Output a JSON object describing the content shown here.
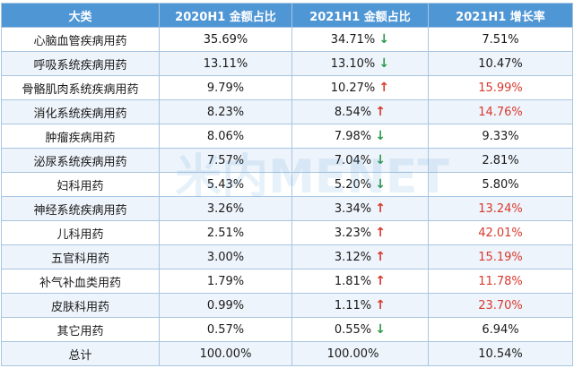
{
  "columns": [
    "大类",
    "2020H1 金额占比",
    "2021H1 金额占比",
    "2021H1 增长率"
  ],
  "rows": [
    {
      "category": "心脑血管疾病用药",
      "share_2020": "35.69%",
      "share_2021": "34.71%",
      "trend": "down",
      "growth": "7.51%",
      "growth_color": "#1a1a1a"
    },
    {
      "category": "呼吸系统疾病用药",
      "share_2020": "13.11%",
      "share_2021": "13.10%",
      "trend": "down",
      "growth": "10.47%",
      "growth_color": "#1a1a1a"
    },
    {
      "category": "骨骼肌肉系统疾病用药",
      "share_2020": "9.79%",
      "share_2021": "10.27%",
      "trend": "up",
      "growth": "15.99%",
      "growth_color": "#d83a2e"
    },
    {
      "category": "消化系统疾病用药",
      "share_2020": "8.23%",
      "share_2021": "8.54%",
      "trend": "up",
      "growth": "14.76%",
      "growth_color": "#d83a2e"
    },
    {
      "category": "肿瘤疾病用药",
      "share_2020": "8.06%",
      "share_2021": "7.98%",
      "trend": "down",
      "growth": "9.33%",
      "growth_color": "#1a1a1a"
    },
    {
      "category": "泌尿系统疾病用药",
      "share_2020": "7.57%",
      "share_2021": "7.04%",
      "trend": "down",
      "growth": "2.81%",
      "growth_color": "#1a1a1a"
    },
    {
      "category": "妇科用药",
      "share_2020": "5.43%",
      "share_2021": "5.20%",
      "trend": "down",
      "growth": "5.80%",
      "growth_color": "#1a1a1a"
    },
    {
      "category": "神经系统疾病用药",
      "share_2020": "3.26%",
      "share_2021": "3.34%",
      "trend": "up",
      "growth": "13.24%",
      "growth_color": "#d83a2e"
    },
    {
      "category": "儿科用药",
      "share_2020": "2.51%",
      "share_2021": "3.23%",
      "trend": "up",
      "growth": "42.01%",
      "growth_color": "#d83a2e"
    },
    {
      "category": "五官科用药",
      "share_2020": "3.00%",
      "share_2021": "3.12%",
      "trend": "up",
      "growth": "15.19%",
      "growth_color": "#d83a2e"
    },
    {
      "category": "补气补血类用药",
      "share_2020": "1.79%",
      "share_2021": "1.81%",
      "trend": "up",
      "growth": "11.78%",
      "growth_color": "#d83a2e"
    },
    {
      "category": "皮肤科用药",
      "share_2020": "0.99%",
      "share_2021": "1.11%",
      "trend": "up",
      "growth": "23.70%",
      "growth_color": "#d83a2e"
    },
    {
      "category": "其它用药",
      "share_2020": "0.57%",
      "share_2021": "0.55%",
      "trend": "down",
      "growth": "6.94%",
      "growth_color": "#1a1a1a"
    },
    {
      "category": "总计",
      "share_2020": "100.00%",
      "share_2021": "100.00%",
      "trend": "",
      "growth": "10.54%",
      "growth_color": "#1a1a1a"
    }
  ],
  "arrows": {
    "up": "↑",
    "down": "↓"
  },
  "colors": {
    "header_bg": "#4f96d5",
    "up": "#d83a2e",
    "down": "#2f9a4a",
    "border": "#a9c5e0",
    "stripe": "#eef4fb"
  },
  "watermark_text": "米内MENET"
}
